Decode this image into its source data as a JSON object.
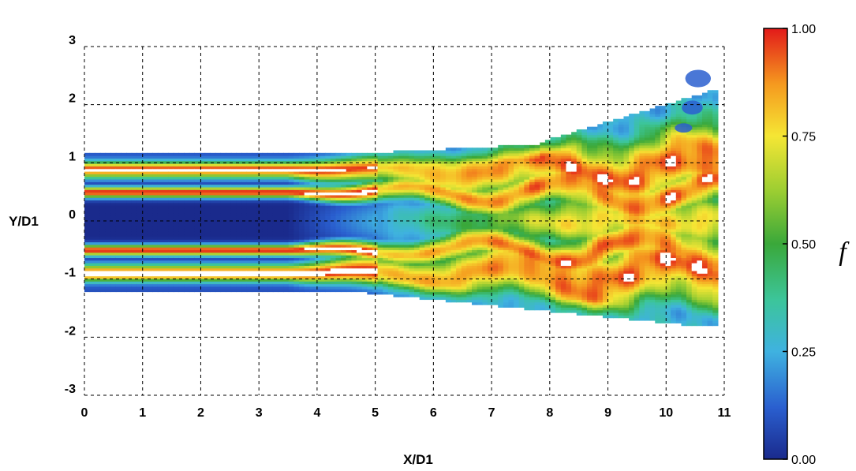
{
  "chart_data": {
    "type": "contour",
    "xlabel": "X/D1",
    "ylabel": "Y/D1",
    "xlim": [
      0,
      11
    ],
    "ylim": [
      -3,
      3
    ],
    "x_ticks": [
      "0",
      "1",
      "2",
      "3",
      "4",
      "5",
      "6",
      "7",
      "8",
      "9",
      "10",
      "11"
    ],
    "y_ticks": [
      "3",
      "2",
      "1",
      "0",
      "-1",
      "-2",
      "-3"
    ],
    "grid": true,
    "grid_style": "dashed",
    "field_extent": {
      "x": [
        0,
        10.8
      ],
      "y": [
        -1.8,
        2.7
      ]
    },
    "colorbar": {
      "label": "f",
      "min": 0.0,
      "max": 1.0,
      "ticks": [
        "1.00",
        "0.75",
        "0.50",
        "0.25",
        "0.00"
      ],
      "colors": [
        "#d7191c",
        "#fdae61",
        "#f0e442",
        "#4daf4a",
        "#4fc3d9",
        "#1f4fb4"
      ]
    },
    "streams": [
      {
        "name": "",
        "y_center": 0.9,
        "half_width": 0.2,
        "value": 1.0
      },
      {
        "name": "",
        "y_center": 0.5,
        "half_width": 0.12,
        "value": 1.0
      },
      {
        "name": "",
        "y_center": -0.5,
        "half_width": 0.12,
        "value": 1.0
      },
      {
        "name": "",
        "y_center": -0.9,
        "half_width": 0.2,
        "value": 1.0
      }
    ]
  }
}
